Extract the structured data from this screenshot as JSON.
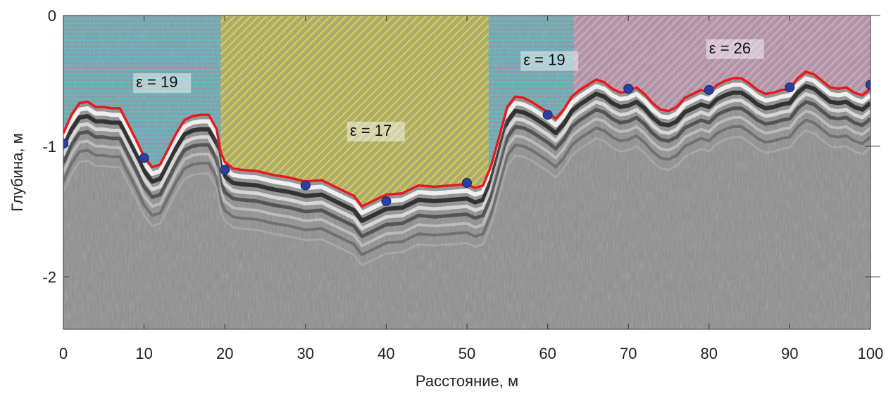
{
  "chart_data": {
    "type": "line",
    "xlabel": "Расстояние, м",
    "ylabel": "Глубина, м",
    "xlim": [
      0,
      100
    ],
    "ylim": [
      0,
      -2.4
    ],
    "x_ticks": [
      {
        "value": 0,
        "label": "0"
      },
      {
        "value": 10,
        "label": "10"
      },
      {
        "value": 20,
        "label": "20"
      },
      {
        "value": 30,
        "label": "30"
      },
      {
        "value": 40,
        "label": "40"
      },
      {
        "value": 50,
        "label": "50"
      },
      {
        "value": 60,
        "label": "60"
      },
      {
        "value": 70,
        "label": "70"
      },
      {
        "value": 80,
        "label": "80"
      },
      {
        "value": 90,
        "label": "90"
      },
      {
        "value": 100,
        "label": "100"
      }
    ],
    "y_ticks": [
      {
        "value": 0,
        "label": "0"
      },
      {
        "value": -1,
        "label": "-1"
      },
      {
        "value": -2,
        "label": "-2"
      }
    ],
    "zones": [
      {
        "label": "ε = 19",
        "x_start": 0,
        "x_end": 19.5,
        "color": "#56c4d6",
        "label_x": 9,
        "label_y": -0.55
      },
      {
        "label": "ε = 17",
        "x_start": 19.5,
        "x_end": 52.7,
        "color": "#d9d23a",
        "label_x": 35.5,
        "label_y": -0.92
      },
      {
        "label": "ε = 19",
        "x_start": 52.7,
        "x_end": 63.2,
        "color": "#56c4d6",
        "label_x": 57,
        "label_y": -0.38
      },
      {
        "label": "ε = 26",
        "x_start": 63.2,
        "x_end": 100,
        "color": "#d89ac0",
        "label_x": 80,
        "label_y": -0.29
      }
    ],
    "boundary_line": {
      "color": "#e8191c",
      "x": [
        0,
        1,
        2,
        3,
        4,
        5,
        6,
        7,
        8,
        9,
        10,
        11,
        12,
        13,
        14,
        15,
        16,
        17,
        18,
        19,
        19.5,
        20,
        21,
        22,
        24,
        26,
        28,
        30,
        32,
        34,
        36,
        37,
        38,
        40,
        42,
        44,
        46,
        48,
        50,
        51,
        52,
        53,
        54,
        55,
        56,
        57,
        58,
        59,
        60,
        61,
        62,
        63,
        64,
        65,
        66,
        67,
        68,
        69,
        70,
        71,
        72,
        73,
        74,
        75,
        76,
        77,
        78,
        79,
        80,
        81,
        82,
        83,
        84,
        85,
        86,
        87,
        88,
        89,
        90,
        91,
        92,
        93,
        94,
        95,
        96,
        97,
        98,
        99,
        100
      ],
      "y": [
        -0.9,
        -0.76,
        -0.67,
        -0.66,
        -0.7,
        -0.7,
        -0.71,
        -0.71,
        -0.83,
        -0.95,
        -1.08,
        -1.16,
        -1.14,
        -1.02,
        -0.9,
        -0.8,
        -0.77,
        -0.76,
        -0.76,
        -0.87,
        -1.05,
        -1.12,
        -1.17,
        -1.18,
        -1.19,
        -1.22,
        -1.24,
        -1.27,
        -1.26,
        -1.32,
        -1.38,
        -1.46,
        -1.43,
        -1.37,
        -1.36,
        -1.3,
        -1.31,
        -1.3,
        -1.29,
        -1.32,
        -1.3,
        -1.15,
        -0.93,
        -0.7,
        -0.62,
        -0.63,
        -0.66,
        -0.7,
        -0.74,
        -0.79,
        -0.72,
        -0.62,
        -0.57,
        -0.53,
        -0.49,
        -0.51,
        -0.56,
        -0.59,
        -0.58,
        -0.55,
        -0.6,
        -0.67,
        -0.72,
        -0.73,
        -0.7,
        -0.63,
        -0.6,
        -0.57,
        -0.59,
        -0.53,
        -0.5,
        -0.48,
        -0.48,
        -0.52,
        -0.57,
        -0.6,
        -0.59,
        -0.57,
        -0.56,
        -0.48,
        -0.43,
        -0.45,
        -0.5,
        -0.55,
        -0.56,
        -0.55,
        -0.59,
        -0.61,
        -0.56
      ]
    },
    "points": {
      "color": "#2b3fa0",
      "x": [
        0,
        10,
        20,
        30,
        40,
        50,
        60,
        70,
        80,
        90,
        100
      ],
      "y": [
        -0.98,
        -1.09,
        -1.18,
        -1.3,
        -1.42,
        -1.28,
        -0.76,
        -0.56,
        -0.57,
        -0.55,
        -0.53
      ]
    }
  }
}
